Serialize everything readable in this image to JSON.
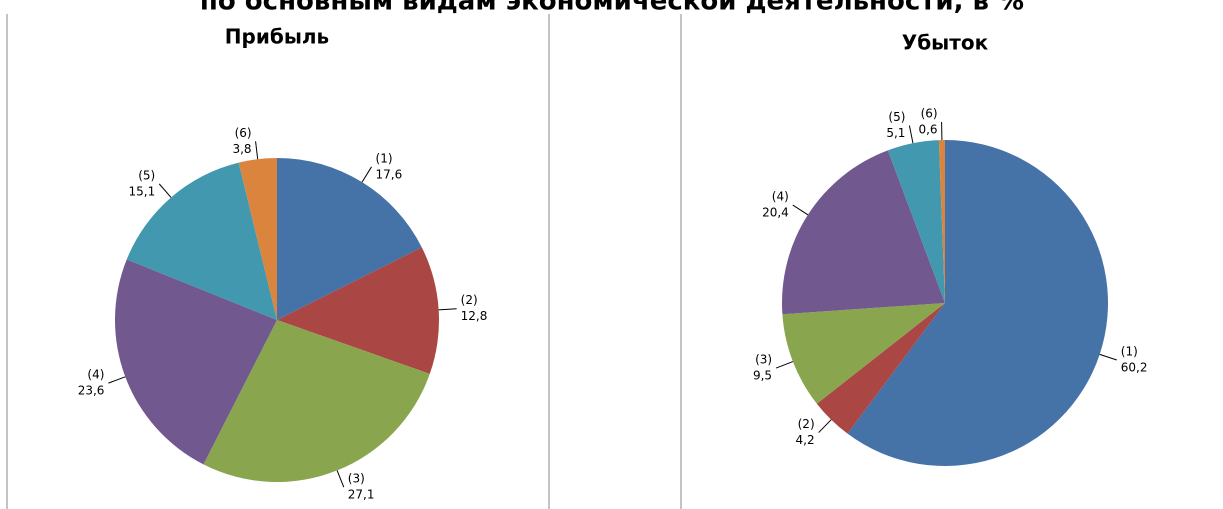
{
  "chart_data": [
    {
      "type": "pie",
      "title": "Прибыль",
      "categories": [
        "(1)",
        "(2)",
        "(3)",
        "(4)",
        "(5)",
        "(6)"
      ],
      "values": [
        17.6,
        12.8,
        27.1,
        23.6,
        15.1,
        3.8
      ],
      "value_labels": [
        "17,6",
        "12,8",
        "27,1",
        "23,6",
        "15,1",
        "3,8"
      ],
      "colors": [
        "#4572a7",
        "#aa4643",
        "#89a54e",
        "#71588f",
        "#4198af",
        "#db843d"
      ]
    },
    {
      "type": "pie",
      "title": "Убыток",
      "categories": [
        "(1)",
        "(2)",
        "(3)",
        "(4)",
        "(5)",
        "(6)"
      ],
      "values": [
        60.2,
        4.2,
        9.5,
        20.4,
        5.1,
        0.6
      ],
      "value_labels": [
        "60,2",
        "4,2",
        "9,5",
        "20,4",
        "5,1",
        "0,6"
      ],
      "colors": [
        "#4572a7",
        "#aa4643",
        "#89a54e",
        "#71588f",
        "#4198af",
        "#db843d"
      ]
    }
  ],
  "page_title": "по основным видам экономической деятельности, в %"
}
